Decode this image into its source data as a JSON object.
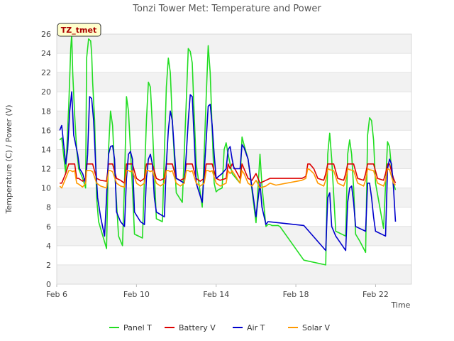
{
  "chart_data": {
    "type": "line",
    "title": "Tonzi Tower Met: Temperature and Power",
    "xlabel": "Time",
    "ylabel": "Temperature (C) / Power (V)",
    "site_tag": "TZ_tmet",
    "x_unit": "days since Feb 6",
    "xlim": [
      0,
      17.8
    ],
    "ylim": [
      0,
      26
    ],
    "yticks": [
      0,
      2,
      4,
      6,
      8,
      10,
      12,
      14,
      16,
      18,
      20,
      22,
      24,
      26
    ],
    "xticks": [
      {
        "value": 0,
        "label": "Feb 6"
      },
      {
        "value": 4,
        "label": "Feb 10"
      },
      {
        "value": 8,
        "label": "Feb 14"
      },
      {
        "value": 12,
        "label": "Feb 18"
      },
      {
        "value": 16,
        "label": "Feb 22"
      }
    ],
    "series": [
      {
        "name": "Panel T",
        "color": "#22dd22",
        "x": [
          0.15,
          0.25,
          0.45,
          0.6,
          0.7,
          0.75,
          0.8,
          0.9,
          1.0,
          1.1,
          1.3,
          1.45,
          1.5,
          1.6,
          1.7,
          1.75,
          1.8,
          1.9,
          2.0,
          2.1,
          2.5,
          2.6,
          2.7,
          2.8,
          2.9,
          3.1,
          3.3,
          3.4,
          3.5,
          3.6,
          3.7,
          3.8,
          3.9,
          4.3,
          4.5,
          4.6,
          4.7,
          4.8,
          5.0,
          5.3,
          5.5,
          5.6,
          5.7,
          5.8,
          6.0,
          6.3,
          6.5,
          6.6,
          6.7,
          6.8,
          6.9,
          7.0,
          7.3,
          7.5,
          7.6,
          7.7,
          7.8,
          7.9,
          8.0,
          8.1,
          8.3,
          8.4,
          8.5,
          8.6,
          8.7,
          8.8,
          9.2,
          9.3,
          9.4,
          9.6,
          10.0,
          10.2,
          10.3,
          10.5,
          10.6,
          10.7,
          10.8,
          10.9,
          11.0,
          11.1,
          11.2,
          12.4,
          13.5,
          13.6,
          13.7,
          13.8,
          14.0,
          14.5,
          14.6,
          14.7,
          14.8,
          14.9,
          15.0,
          15.2,
          15.5,
          15.6,
          15.7,
          15.8,
          15.9,
          16.0,
          16.4,
          16.6,
          16.7,
          16.8,
          16.9,
          17.0
        ],
        "y": [
          15.0,
          15.2,
          11.5,
          18.5,
          24.5,
          26.0,
          22.0,
          17.5,
          14.0,
          12.0,
          11.0,
          10.0,
          23.5,
          25.5,
          25.3,
          24.0,
          21.0,
          17.0,
          9.0,
          6.5,
          3.7,
          14.0,
          18.0,
          16.5,
          12.0,
          5.0,
          4.0,
          10.5,
          19.5,
          18.0,
          14.0,
          10.0,
          5.2,
          4.8,
          17.0,
          21.0,
          20.5,
          16.5,
          6.8,
          6.5,
          20.5,
          23.5,
          22.0,
          17.0,
          9.5,
          8.5,
          19.0,
          24.5,
          24.2,
          23.0,
          17.5,
          12.5,
          8.0,
          19.5,
          24.8,
          22.0,
          16.0,
          10.5,
          9.6,
          9.8,
          10.0,
          14.0,
          14.7,
          13.5,
          12.5,
          11.5,
          10.5,
          15.3,
          14.5,
          13.0,
          6.4,
          13.5,
          10.2,
          6.0,
          6.2,
          6.2,
          6.1,
          6.1,
          6.1,
          6.1,
          6.0,
          2.5,
          2.0,
          13.5,
          15.7,
          13.0,
          5.5,
          5.0,
          13.5,
          15.0,
          13.5,
          10.0,
          5.2,
          4.5,
          3.3,
          15.5,
          17.3,
          17.0,
          15.0,
          10.5,
          5.8,
          14.8,
          14.3,
          12.0,
          10.5,
          9.8
        ]
      },
      {
        "name": "Battery V",
        "color": "#dd0000",
        "x": [
          0.15,
          0.25,
          0.45,
          0.6,
          0.7,
          0.8,
          0.9,
          1.0,
          1.1,
          1.3,
          1.45,
          1.5,
          1.6,
          1.7,
          1.8,
          2.0,
          2.2,
          2.5,
          2.6,
          2.7,
          2.8,
          3.0,
          3.2,
          3.4,
          3.5,
          3.6,
          3.7,
          3.8,
          4.0,
          4.2,
          4.4,
          4.5,
          4.6,
          4.7,
          4.8,
          5.0,
          5.2,
          5.4,
          5.5,
          5.6,
          5.7,
          5.8,
          6.0,
          6.2,
          6.4,
          6.5,
          6.6,
          6.7,
          6.8,
          7.0,
          7.2,
          7.4,
          7.5,
          7.6,
          7.7,
          7.8,
          8.0,
          8.2,
          8.5,
          8.6,
          8.7,
          8.8,
          9.2,
          9.3,
          9.4,
          9.6,
          9.8,
          10.0,
          10.2,
          10.5,
          10.7,
          11.0,
          12.3,
          12.5,
          12.6,
          12.7,
          12.9,
          13.1,
          13.4,
          13.5,
          13.6,
          13.7,
          13.9,
          14.1,
          14.4,
          14.5,
          14.6,
          14.7,
          14.9,
          15.1,
          15.4,
          15.5,
          15.6,
          15.7,
          15.9,
          16.1,
          16.4,
          16.5,
          16.6,
          16.7,
          16.9,
          17.0
        ],
        "y": [
          10.5,
          10.5,
          11.5,
          12.5,
          12.5,
          12.5,
          12.5,
          11.0,
          11.0,
          10.7,
          11.0,
          12.5,
          12.5,
          12.5,
          12.5,
          11.0,
          10.8,
          10.7,
          12.5,
          12.5,
          12.5,
          11.0,
          10.8,
          10.5,
          12.5,
          12.5,
          12.5,
          12.5,
          11.0,
          10.7,
          11.0,
          12.5,
          12.5,
          12.5,
          12.5,
          11.0,
          10.8,
          11.0,
          12.5,
          12.5,
          12.5,
          12.5,
          11.0,
          10.8,
          11.0,
          12.5,
          12.5,
          12.5,
          12.5,
          11.0,
          10.7,
          11.0,
          12.5,
          12.5,
          12.5,
          12.5,
          11.0,
          10.8,
          11.0,
          12.5,
          12.0,
          12.5,
          11.0,
          12.5,
          12.0,
          11.0,
          10.8,
          11.5,
          10.5,
          10.8,
          11.0,
          11.0,
          11.0,
          11.2,
          12.5,
          12.5,
          12.0,
          11.0,
          10.8,
          11.5,
          12.5,
          12.5,
          12.5,
          11.0,
          10.8,
          11.5,
          12.5,
          12.5,
          12.5,
          11.0,
          10.8,
          11.5,
          12.5,
          12.5,
          12.5,
          11.0,
          10.8,
          11.5,
          12.5,
          12.5,
          11.0,
          10.5
        ]
      },
      {
        "name": "Air T",
        "color": "#0000cc",
        "x": [
          0.15,
          0.25,
          0.45,
          0.55,
          0.65,
          0.75,
          0.85,
          0.95,
          1.05,
          1.15,
          1.3,
          1.45,
          1.55,
          1.65,
          1.75,
          1.85,
          1.95,
          2.05,
          2.2,
          2.4,
          2.5,
          2.6,
          2.7,
          2.8,
          2.9,
          3.0,
          3.2,
          3.4,
          3.5,
          3.6,
          3.7,
          3.8,
          3.9,
          4.2,
          4.4,
          4.5,
          4.6,
          4.7,
          4.8,
          4.9,
          5.0,
          5.4,
          5.5,
          5.6,
          5.7,
          5.8,
          5.9,
          6.0,
          6.4,
          6.5,
          6.6,
          6.7,
          6.8,
          6.9,
          7.0,
          7.3,
          7.5,
          7.6,
          7.7,
          7.8,
          7.9,
          8.0,
          8.3,
          8.5,
          8.6,
          8.7,
          8.8,
          8.9,
          9.2,
          9.3,
          9.4,
          9.6,
          10.0,
          10.2,
          10.3,
          10.5,
          10.6,
          12.4,
          13.5,
          13.6,
          13.7,
          13.8,
          14.0,
          14.5,
          14.6,
          14.7,
          14.8,
          14.9,
          15.0,
          15.5,
          15.6,
          15.7,
          15.8,
          15.9,
          16.0,
          16.5,
          16.6,
          16.7,
          16.8,
          16.9,
          17.0
        ],
        "y": [
          16.0,
          16.5,
          12.5,
          14.0,
          18.0,
          20.0,
          15.5,
          14.5,
          13.5,
          12.0,
          11.5,
          10.5,
          13.5,
          19.5,
          19.3,
          17.0,
          12.5,
          9.0,
          7.0,
          5.0,
          9.0,
          13.5,
          14.3,
          14.4,
          13.0,
          7.5,
          6.5,
          6.0,
          11.0,
          13.5,
          13.8,
          13.0,
          7.5,
          6.5,
          6.2,
          11.0,
          13.0,
          13.5,
          12.5,
          9.0,
          7.5,
          7.0,
          12.5,
          16.0,
          18.0,
          17.0,
          14.0,
          11.0,
          10.5,
          13.5,
          17.0,
          19.7,
          19.5,
          15.0,
          10.5,
          8.5,
          15.0,
          18.5,
          18.7,
          16.5,
          13.5,
          11.0,
          11.5,
          12.0,
          14.0,
          14.3,
          13.0,
          12.0,
          12.0,
          14.5,
          14.2,
          13.0,
          7.0,
          10.5,
          8.0,
          6.2,
          6.5,
          6.1,
          3.5,
          9.0,
          9.5,
          6.0,
          5.0,
          3.5,
          8.5,
          10.0,
          10.2,
          8.5,
          6.0,
          5.5,
          10.5,
          10.5,
          9.0,
          7.0,
          5.5,
          5.0,
          12.0,
          13.0,
          12.5,
          10.0,
          6.5
        ]
      },
      {
        "name": "Solar V",
        "color": "#ff9900",
        "x": [
          0.15,
          0.25,
          0.45,
          0.6,
          0.7,
          0.8,
          0.9,
          1.0,
          1.1,
          1.3,
          1.45,
          1.5,
          1.6,
          1.7,
          1.8,
          2.0,
          2.2,
          2.5,
          2.6,
          2.7,
          2.8,
          3.0,
          3.2,
          3.4,
          3.5,
          3.6,
          3.7,
          3.8,
          4.0,
          4.2,
          4.4,
          4.5,
          4.6,
          4.7,
          4.8,
          5.0,
          5.2,
          5.4,
          5.5,
          5.6,
          5.7,
          5.8,
          6.0,
          6.2,
          6.4,
          6.5,
          6.6,
          6.7,
          6.8,
          7.0,
          7.2,
          7.4,
          7.5,
          7.6,
          7.7,
          7.8,
          8.0,
          8.2,
          8.5,
          8.6,
          8.7,
          8.8,
          9.2,
          9.3,
          9.4,
          9.6,
          9.8,
          10.0,
          10.2,
          10.5,
          10.7,
          11.0,
          12.3,
          12.5,
          12.6,
          12.7,
          12.9,
          13.1,
          13.4,
          13.5,
          13.6,
          13.7,
          13.9,
          14.1,
          14.4,
          14.5,
          14.6,
          14.7,
          14.9,
          15.1,
          15.4,
          15.5,
          15.6,
          15.7,
          15.9,
          16.1,
          16.4,
          16.5,
          16.6,
          16.7,
          16.9,
          17.0
        ],
        "y": [
          10.2,
          10.0,
          11.0,
          11.8,
          11.8,
          11.7,
          11.8,
          10.5,
          10.4,
          10.1,
          10.5,
          11.8,
          11.8,
          11.8,
          11.7,
          10.5,
          10.2,
          10.0,
          11.8,
          11.8,
          11.7,
          10.5,
          10.2,
          10.1,
          11.8,
          11.8,
          11.7,
          11.8,
          10.5,
          10.2,
          10.5,
          11.8,
          11.8,
          11.7,
          11.8,
          10.5,
          10.2,
          10.5,
          11.8,
          11.8,
          11.7,
          11.8,
          10.5,
          10.2,
          10.5,
          11.8,
          11.8,
          11.7,
          11.8,
          10.5,
          10.2,
          10.5,
          11.8,
          11.8,
          11.7,
          11.8,
          10.5,
          10.2,
          10.5,
          11.8,
          11.5,
          11.8,
          10.5,
          11.8,
          11.5,
          10.5,
          10.2,
          10.8,
          10.0,
          10.2,
          10.5,
          10.3,
          10.8,
          11.0,
          12.0,
          11.9,
          11.5,
          10.5,
          10.2,
          10.8,
          12.0,
          11.9,
          11.8,
          10.5,
          10.2,
          10.8,
          12.0,
          11.9,
          11.8,
          10.5,
          10.2,
          10.8,
          12.0,
          11.9,
          11.8,
          10.5,
          10.2,
          10.8,
          12.0,
          11.9,
          10.5,
          10.3
        ]
      }
    ],
    "legend_position": "bottom-center"
  }
}
